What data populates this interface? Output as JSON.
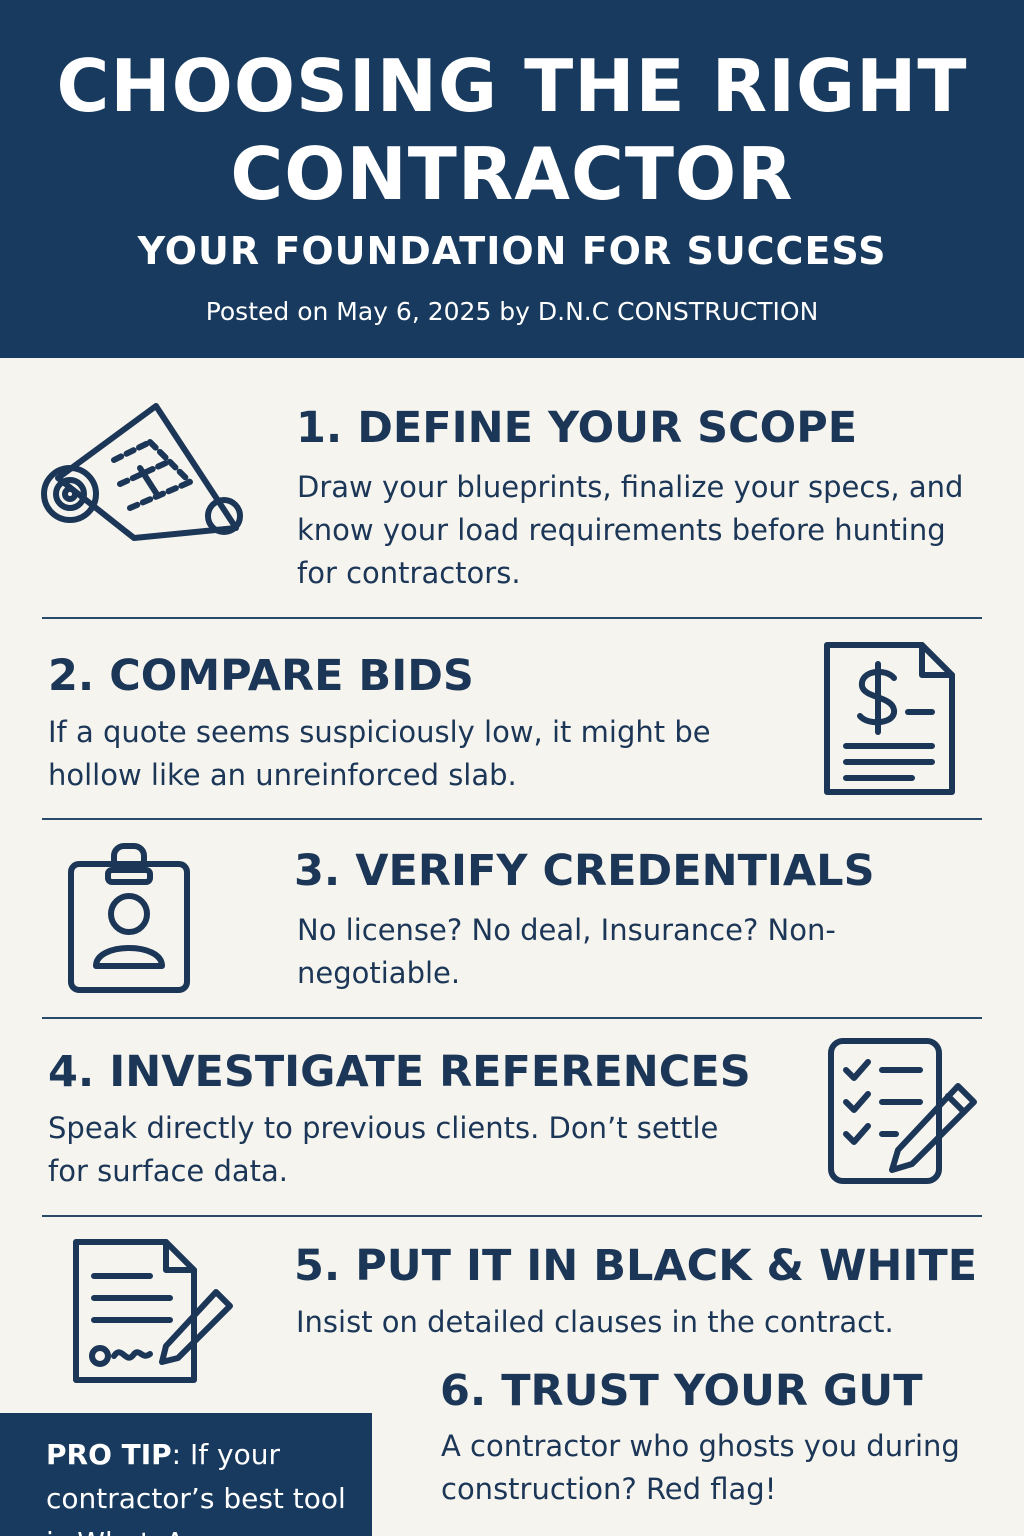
{
  "header": {
    "title_line1": "CHOOSING THE RIGHT",
    "title_line2": "CONTRACTOR",
    "subtitle": "YOUR FOUNDATION FOR SUCCESS",
    "byline": "Posted on May 6, 2025 by D.N.C CONSTRUCTION"
  },
  "steps": [
    {
      "heading": "1. DEFINE YOUR SCOPE",
      "body": "Draw your blueprints, finalize your specs, and know your load requirements before hunting for contractors.",
      "icon": "blueprint-scroll-icon"
    },
    {
      "heading": "2. COMPARE BIDS",
      "body": "If a quote seems suspiciously low, it might be hollow like an unreinforced slab.",
      "icon": "price-quote-document-icon"
    },
    {
      "heading": "3. VERIFY CREDENTIALS",
      "body": "No license? No deal, Insurance? Non-negotiable.",
      "icon": "id-badge-icon"
    },
    {
      "heading": "4. INVESTIGATE REFERENCES",
      "body": "Speak directly to previous clients. Don’t settle for surface data.",
      "icon": "checklist-pencil-icon"
    },
    {
      "heading": "5. PUT IT IN BLACK & WHITE",
      "body": "Insist on detailed clauses in the contract.",
      "icon": "signed-contract-icon"
    },
    {
      "heading": "6. TRUST YOUR GUT",
      "body": "A contractor who ghosts you during construction? Red flag!"
    }
  ],
  "pro_tip": {
    "label": "PRO TIP",
    "text": ": If your contractor’s best tool is WhatsApp"
  },
  "colors": {
    "navy": "#173a5e",
    "text": "#1b3656",
    "background": "#f6f4ef"
  }
}
